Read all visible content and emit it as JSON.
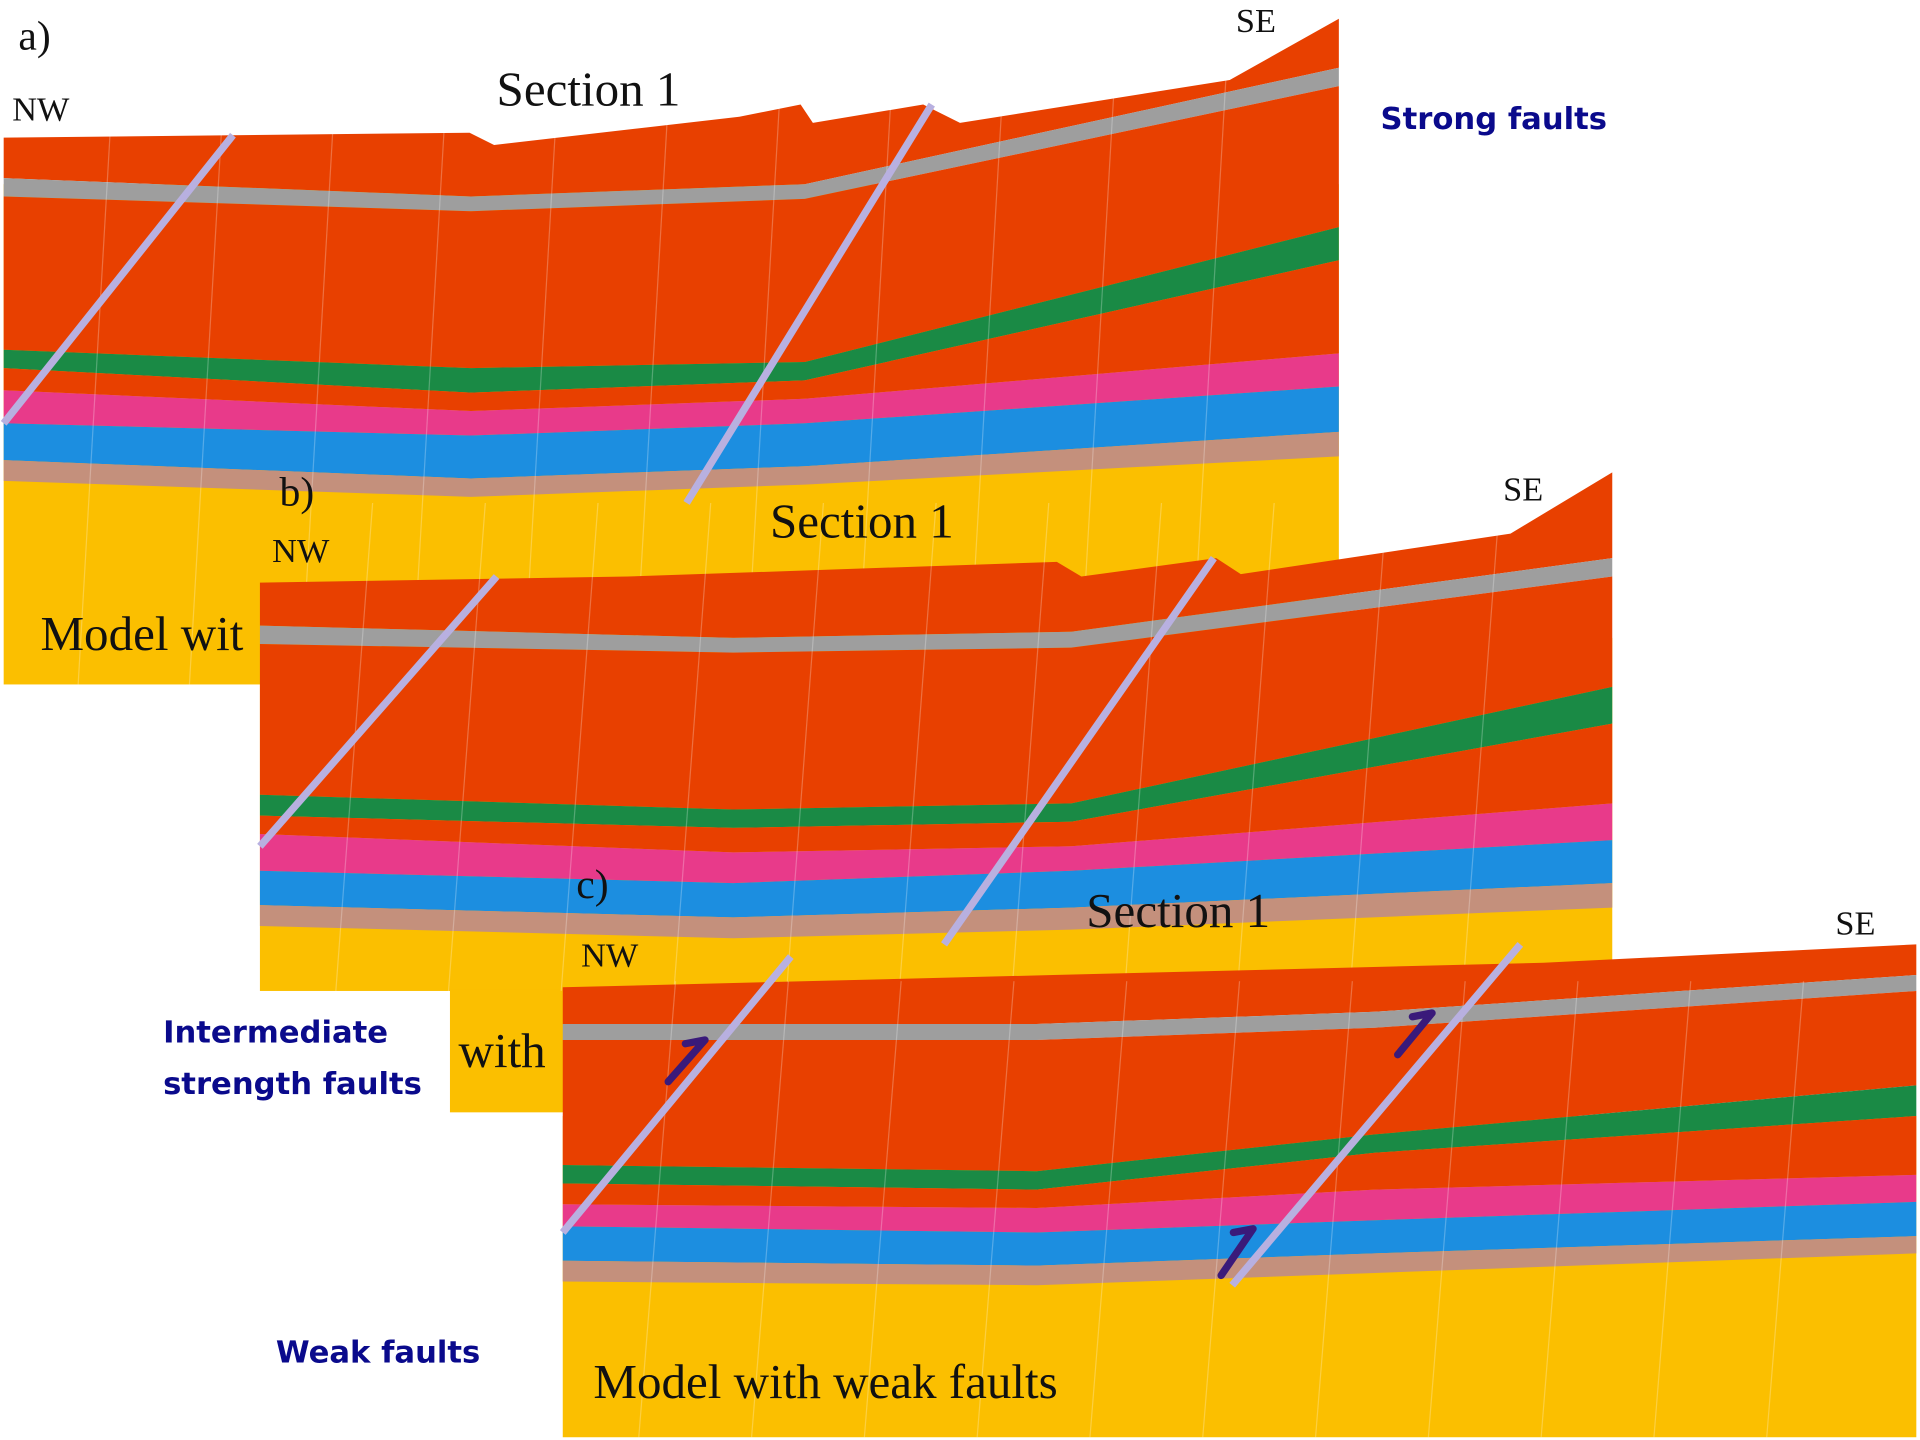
{
  "panels": [
    {
      "label": "a)",
      "nw": "NW",
      "se": "SE",
      "section": "Section 1",
      "caption": "Model wit"
    },
    {
      "label": "b)",
      "nw": "NW",
      "se": "SE",
      "section": "Section 1",
      "caption": "with"
    },
    {
      "label": "c)",
      "nw": "NW",
      "se": "SE",
      "section": "Section 1",
      "caption": "Model with weak faults"
    }
  ],
  "side_labels": {
    "strong": "Strong faults",
    "intermediate": [
      "Intermediate",
      "strength faults"
    ],
    "weak": "Weak faults"
  }
}
